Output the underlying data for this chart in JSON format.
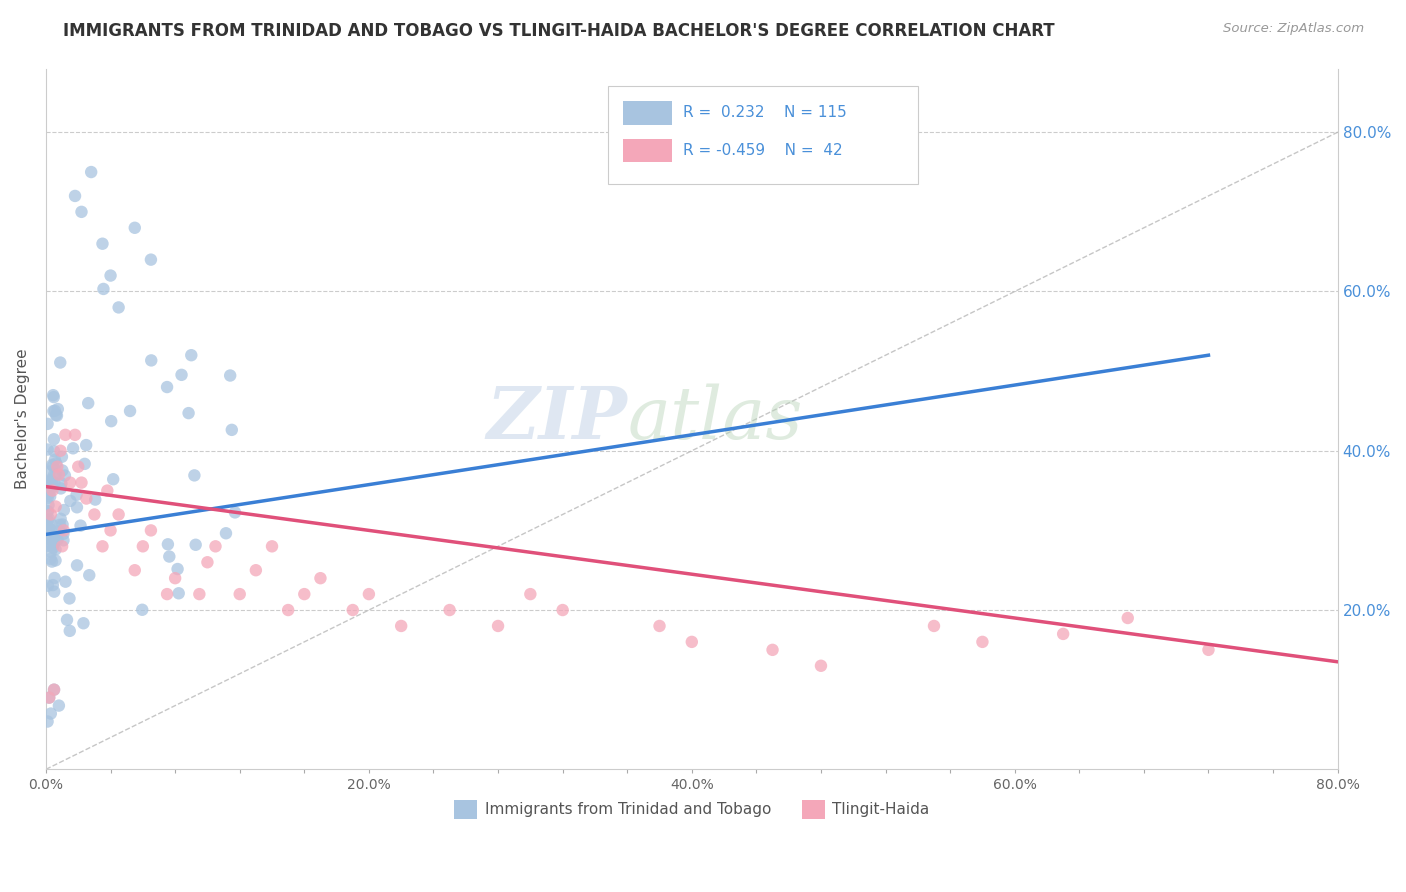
{
  "title": "IMMIGRANTS FROM TRINIDAD AND TOBAGO VS TLINGIT-HAIDA BACHELOR'S DEGREE CORRELATION CHART",
  "source": "Source: ZipAtlas.com",
  "ylabel": "Bachelor's Degree",
  "xlim": [
    0.0,
    0.8
  ],
  "ylim": [
    0.0,
    0.88
  ],
  "xtick_labels": [
    "0.0%",
    "",
    "",
    "",
    "",
    "20.0%",
    "",
    "",
    "",
    "",
    "40.0%",
    "",
    "",
    "",
    "",
    "60.0%",
    "",
    "",
    "",
    "",
    "80.0%"
  ],
  "xtick_vals": [
    0.0,
    0.04,
    0.08,
    0.12,
    0.16,
    0.2,
    0.24,
    0.28,
    0.32,
    0.36,
    0.4,
    0.44,
    0.48,
    0.52,
    0.56,
    0.6,
    0.64,
    0.68,
    0.72,
    0.76,
    0.8
  ],
  "ytick_labels": [
    "20.0%",
    "40.0%",
    "60.0%",
    "80.0%"
  ],
  "ytick_vals": [
    0.2,
    0.4,
    0.6,
    0.8
  ],
  "blue_R": 0.232,
  "blue_N": 115,
  "pink_R": -0.459,
  "pink_N": 42,
  "blue_color": "#a8c4e0",
  "pink_color": "#f4a7b9",
  "blue_line_color": "#3a7fd5",
  "pink_line_color": "#e0507a",
  "legend_label_blue": "Immigrants from Trinidad and Tobago",
  "legend_label_pink": "Tlingit-Haida",
  "blue_trend_x": [
    0.0,
    0.72
  ],
  "blue_trend_y": [
    0.295,
    0.52
  ],
  "pink_trend_x": [
    0.0,
    0.8
  ],
  "pink_trend_y": [
    0.355,
    0.135
  ],
  "ref_line_x": [
    0.0,
    0.88
  ],
  "ref_line_y": [
    0.0,
    0.88
  ]
}
